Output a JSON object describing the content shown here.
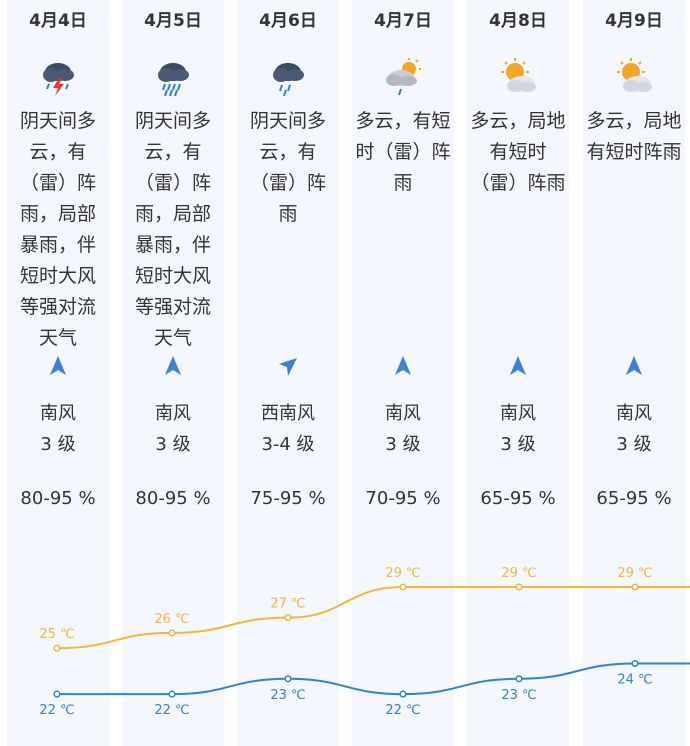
{
  "days": [
    {
      "date": "4月4日",
      "icon": "thunderstorm-icon",
      "desc": "阴天间多云，有（雷）阵雨，局部暴雨，伴短时大风等强对流天气",
      "wind_dir": "南风",
      "wind_level": "3 级",
      "wind_arrow": "north-arrow-icon",
      "humidity": "80-95 %",
      "high": "25 ℃",
      "low": "22 ℃"
    },
    {
      "date": "4月5日",
      "icon": "heavy-rain-icon",
      "desc": "阴天间多云，有（雷）阵雨，局部暴雨，伴短时大风等强对流天气",
      "wind_dir": "南风",
      "wind_level": "3 级",
      "wind_arrow": "north-arrow-icon",
      "humidity": "80-95 %",
      "high": "26 ℃",
      "low": "22 ℃"
    },
    {
      "date": "4月6日",
      "icon": "rain-cloud-icon",
      "desc": "阴天间多云，有（雷）阵雨",
      "wind_dir": "西南风",
      "wind_level": "3-4 级",
      "wind_arrow": "northeast-arrow-icon",
      "humidity": "75-95 %",
      "high": "27 ℃",
      "low": "23 ℃"
    },
    {
      "date": "4月7日",
      "icon": "partly-cloudy-rain-icon",
      "desc": "多云，有短时（雷）阵雨",
      "wind_dir": "南风",
      "wind_level": "3 级",
      "wind_arrow": "north-arrow-icon",
      "humidity": "70-95 %",
      "high": "29 ℃",
      "low": "22 ℃"
    },
    {
      "date": "4月8日",
      "icon": "sun-cloud-icon",
      "desc": "多云，局地有短时（雷）阵雨",
      "wind_dir": "南风",
      "wind_level": "3 级",
      "wind_arrow": "north-arrow-icon",
      "humidity": "65-95 %",
      "high": "29 ℃",
      "low": "23 ℃"
    },
    {
      "date": "4月9日",
      "icon": "sun-cloud-icon",
      "desc": "多云，局地有短时阵雨",
      "wind_dir": "南风",
      "wind_level": "3 级",
      "wind_arrow": "north-arrow-icon",
      "humidity": "65-95 %",
      "high": "29 ℃",
      "low": "24 ℃"
    }
  ],
  "colors": {
    "high_line": "#f5b731",
    "low_line": "#2f80d8",
    "column_bg": "#f4f7fd",
    "text": "#333333"
  },
  "chart_data": {
    "type": "line",
    "categories": [
      "4月4日",
      "4月5日",
      "4月6日",
      "4月7日",
      "4月8日",
      "4月9日"
    ],
    "series": [
      {
        "values": [
          25,
          26,
          27,
          29,
          29,
          29
        ]
      },
      {
        "values": [
          22,
          22,
          23,
          22,
          23,
          24
        ]
      }
    ],
    "unit": "℃",
    "grid": false
  }
}
